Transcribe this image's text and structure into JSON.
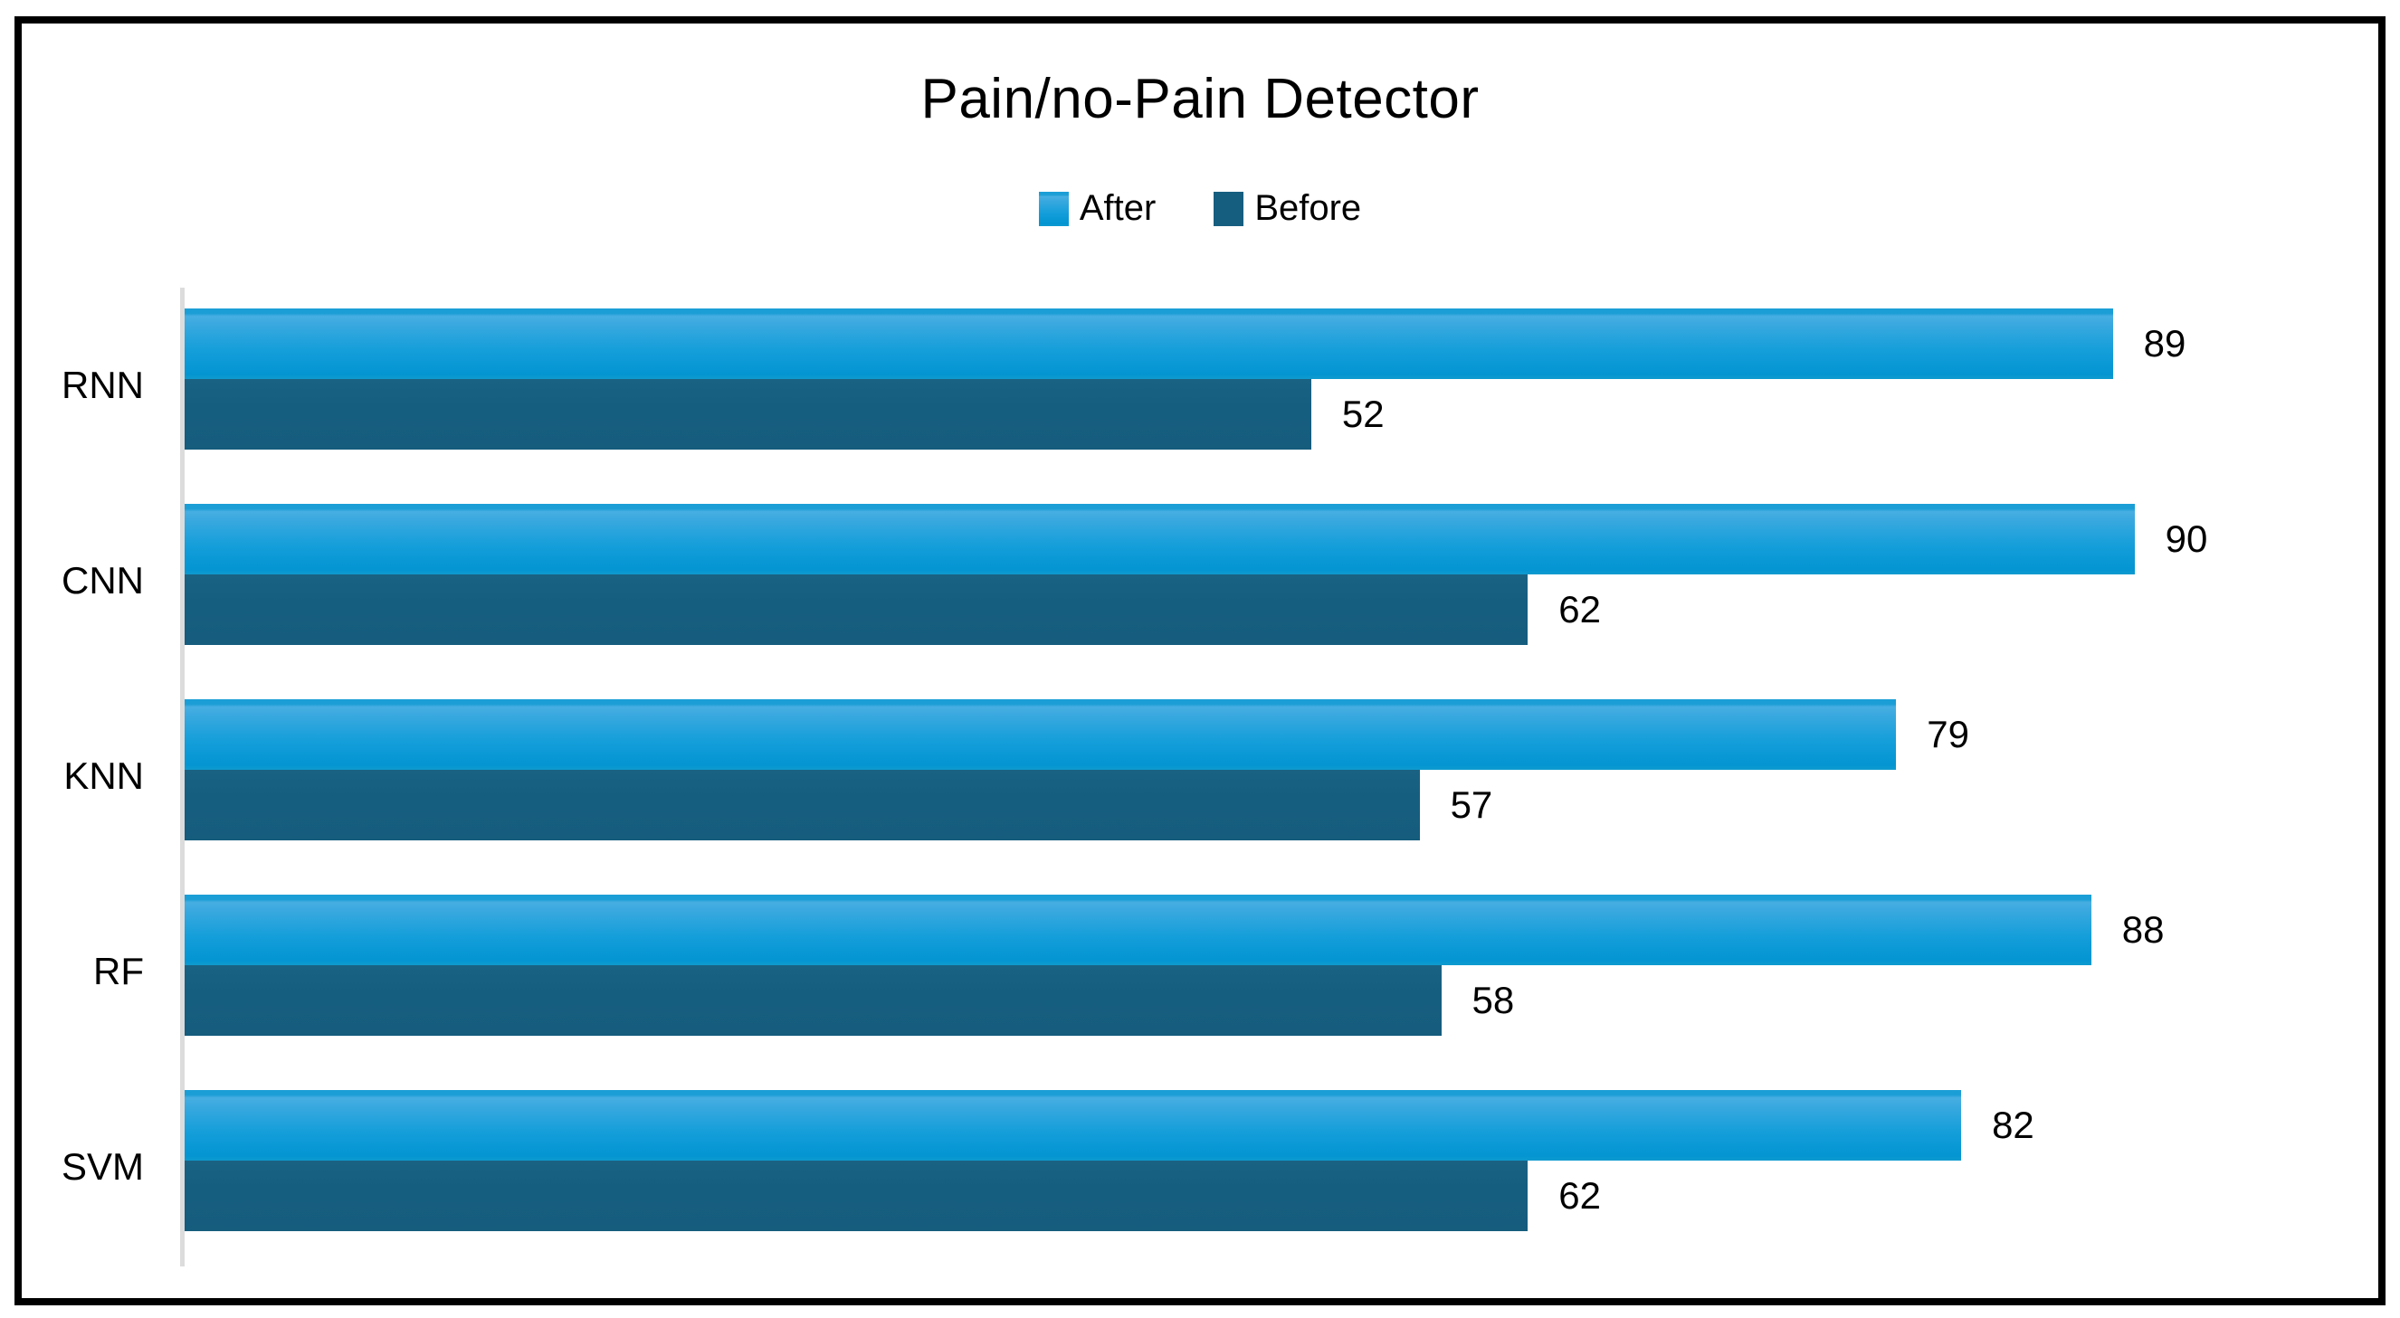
{
  "title": "Pain/no-Pain Detector",
  "legend": {
    "position": "top-center",
    "items": [
      {
        "label": "After"
      },
      {
        "label": "Before"
      }
    ]
  },
  "chart_data": {
    "type": "bar",
    "orientation": "horizontal",
    "title": "Pain/no-Pain Detector",
    "categories": [
      "RNN",
      "CNN",
      "KNN",
      "RF",
      "SVM"
    ],
    "series": [
      {
        "name": "After",
        "values": [
          89,
          90,
          79,
          88,
          82
        ],
        "color": "#18a0dc"
      },
      {
        "name": "Before",
        "values": [
          52,
          62,
          57,
          58,
          62
        ],
        "color": "#165e80"
      }
    ],
    "xlim": [
      0,
      100
    ],
    "data_labels": "outside-end",
    "grid": false,
    "legend_position": "top",
    "bar_order_in_group": [
      "After",
      "Before"
    ]
  },
  "colors": {
    "after_top_strip": "#1b9ed6",
    "after_light": "#47aee2",
    "after_mid": "#149eda",
    "after_dark": "#0395d2",
    "before": "#165e80",
    "axis_line": "#dcdcdc",
    "frame_border": "#000000",
    "background": "#ffffff",
    "text": "#000000"
  }
}
